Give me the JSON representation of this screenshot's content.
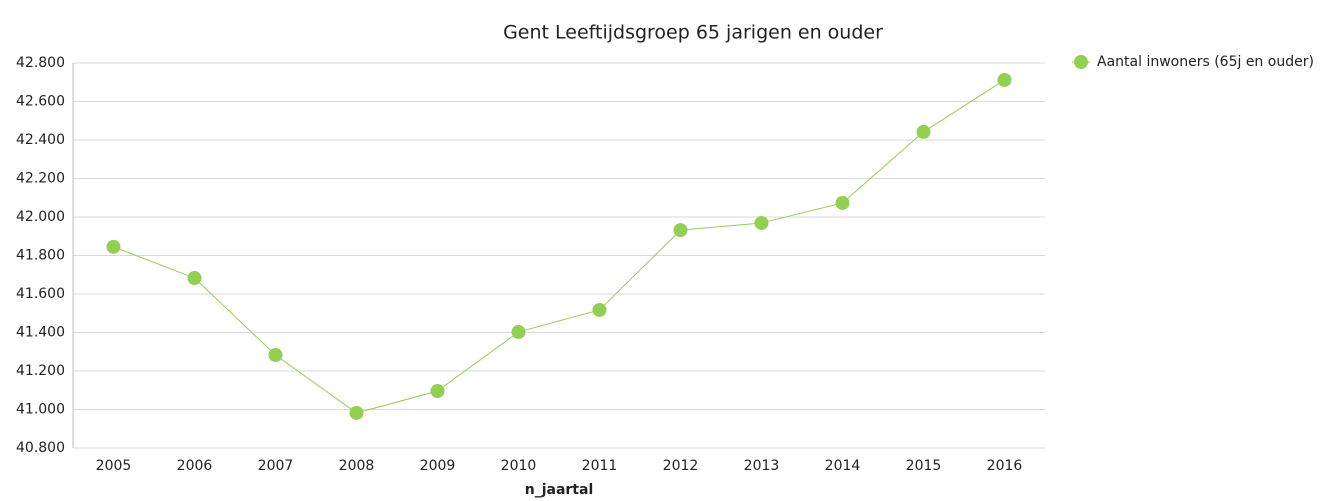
{
  "chart_data": {
    "type": "line",
    "title": "Gent  Leeftijdsgroep 65 jarigen en ouder",
    "x_label": "n_jaartal",
    "categories": [
      "2005",
      "2006",
      "2007",
      "2008",
      "2009",
      "2010",
      "2011",
      "2012",
      "2013",
      "2014",
      "2015",
      "2016"
    ],
    "series": [
      {
        "name": "Aantal inwoners (65j en ouder)",
        "color": "#92d050",
        "values": [
          41845,
          41683,
          41283,
          40982,
          41096,
          41403,
          41517,
          41932,
          41969,
          42073,
          42442,
          42712
        ]
      }
    ],
    "ylim": [
      40800,
      42800
    ],
    "yticks": [
      {
        "value": 40800,
        "label": "40.800"
      },
      {
        "value": 41000,
        "label": "41.000"
      },
      {
        "value": 41200,
        "label": "41.200"
      },
      {
        "value": 41400,
        "label": "41.400"
      },
      {
        "value": 41600,
        "label": "41.600"
      },
      {
        "value": 41800,
        "label": "41.800"
      },
      {
        "value": 42000,
        "label": "42.000"
      },
      {
        "value": 42200,
        "label": "42.200"
      },
      {
        "value": 42400,
        "label": "42.400"
      },
      {
        "value": 42600,
        "label": "42.600"
      },
      {
        "value": 42800,
        "label": "42.800"
      }
    ],
    "grid": true,
    "legend": "top-right"
  }
}
